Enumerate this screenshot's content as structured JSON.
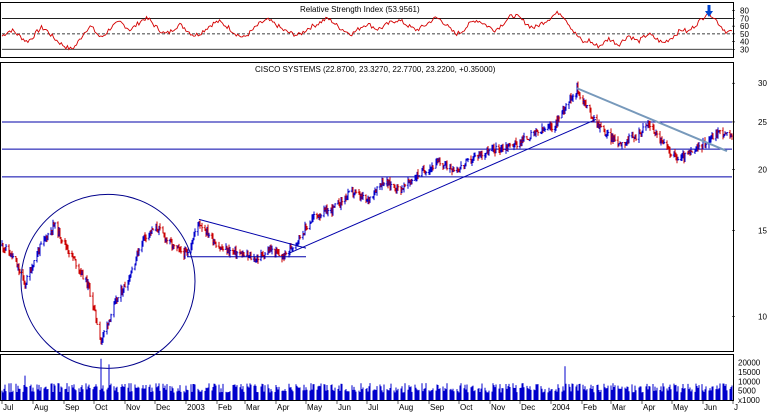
{
  "chart_data": [
    {
      "type": "line",
      "panel": "rsi",
      "title": "Relative Strength Index (53.9561)",
      "ylim": [
        20,
        90
      ],
      "yticks": [
        "80",
        "70",
        "60",
        "50",
        "40",
        "30"
      ],
      "ytick_values": [
        80,
        70,
        60,
        50,
        40,
        30
      ],
      "reference_lines": {
        "upper": 70,
        "mid": 50,
        "lower": 30
      },
      "last_value": 53.9561,
      "line_color": "#d40000",
      "series": [
        {
          "values": [
            47,
            52,
            55,
            50,
            45,
            40,
            44,
            52,
            58,
            55,
            48,
            42,
            37,
            33,
            30,
            35,
            45,
            55,
            60,
            52,
            45,
            50,
            58,
            62,
            65,
            60,
            55,
            60,
            66,
            70,
            68,
            60,
            55,
            50,
            52,
            58,
            62,
            58,
            52,
            48,
            50,
            55,
            60,
            64,
            66,
            62,
            58,
            52,
            48,
            45,
            50,
            56,
            62,
            66,
            68,
            64,
            60,
            55,
            52,
            50,
            48,
            52,
            57,
            60,
            63,
            67,
            70,
            66,
            60,
            56,
            52,
            50,
            55,
            60,
            63,
            60,
            56,
            58,
            62,
            65,
            68,
            66,
            62,
            58,
            55,
            58,
            62,
            67,
            71,
            68,
            62,
            55,
            50,
            52,
            58,
            64,
            68,
            66,
            62,
            58,
            55,
            60,
            66,
            72,
            74,
            70,
            65,
            60,
            58,
            62,
            66,
            70,
            75,
            78,
            72,
            62,
            52,
            45,
            38,
            42,
            36,
            34,
            38,
            44,
            40,
            36,
            42,
            48,
            44,
            40,
            45,
            50,
            46,
            42,
            38,
            42,
            46,
            52,
            56,
            52,
            58,
            64,
            70,
            78,
            74,
            66,
            58,
            52,
            53.9561
          ]
        }
      ]
    },
    {
      "type": "candlestick",
      "panel": "price",
      "title": "CISCO SYSTEMS (22.8700, 23.3270, 22.7700, 23.2200, +0.35000)",
      "scale": "log",
      "ylim": [
        8.5,
        33
      ],
      "yticks": [
        "30",
        "25",
        "20",
        "15",
        "10"
      ],
      "ytick_values": [
        30,
        25,
        20,
        15,
        10
      ],
      "horizontal_levels": [
        25,
        22,
        19.3
      ],
      "up_color": "#0000cc",
      "down_color": "#cc0000",
      "x_start": "2002-07-01",
      "x_end": "2004-06-30",
      "close_anchors": [
        [
          "2002-07-01",
          14.0
        ],
        [
          "2002-07-12",
          13.2
        ],
        [
          "2002-07-24",
          11.6
        ],
        [
          "2002-08-06",
          13.6
        ],
        [
          "2002-08-22",
          15.4
        ],
        [
          "2002-09-06",
          13.6
        ],
        [
          "2002-09-25",
          11.6
        ],
        [
          "2002-10-08",
          8.9
        ],
        [
          "2002-10-22",
          10.6
        ],
        [
          "2002-11-05",
          12.0
        ],
        [
          "2002-11-20",
          14.6
        ],
        [
          "2002-12-03",
          15.2
        ],
        [
          "2002-12-20",
          13.8
        ],
        [
          "2003-01-02",
          13.4
        ],
        [
          "2003-01-14",
          15.6
        ],
        [
          "2003-02-04",
          13.8
        ],
        [
          "2003-02-25",
          13.4
        ],
        [
          "2003-03-12",
          13.1
        ],
        [
          "2003-03-26",
          13.7
        ],
        [
          "2003-04-08",
          13.2
        ],
        [
          "2003-04-22",
          14.3
        ],
        [
          "2003-05-09",
          16.0
        ],
        [
          "2003-05-28",
          16.6
        ],
        [
          "2003-06-16",
          18.0
        ],
        [
          "2003-07-01",
          17.2
        ],
        [
          "2003-07-16",
          18.9
        ],
        [
          "2003-08-04",
          18.2
        ],
        [
          "2003-08-22",
          19.6
        ],
        [
          "2003-09-10",
          20.6
        ],
        [
          "2003-09-30",
          20.0
        ],
        [
          "2003-10-20",
          21.4
        ],
        [
          "2003-11-07",
          22.0
        ],
        [
          "2003-11-28",
          22.6
        ],
        [
          "2003-12-15",
          23.6
        ],
        [
          "2004-01-05",
          24.6
        ],
        [
          "2004-01-15",
          27.0
        ],
        [
          "2004-01-27",
          29.2
        ],
        [
          "2004-02-09",
          26.0
        ],
        [
          "2004-02-25",
          23.6
        ],
        [
          "2004-03-10",
          22.6
        ],
        [
          "2004-03-25",
          23.3
        ],
        [
          "2004-04-08",
          24.8
        ],
        [
          "2004-04-23",
          22.4
        ],
        [
          "2004-05-07",
          21.0
        ],
        [
          "2004-05-21",
          21.6
        ],
        [
          "2004-06-04",
          22.8
        ],
        [
          "2004-06-17",
          23.9
        ],
        [
          "2004-06-30",
          23.22
        ]
      ],
      "trendlines": [
        {
          "color": "#0000aa",
          "points": [
            [
              "2003-01-14",
              15.8
            ],
            [
              "2003-05-01",
              13.8
            ]
          ]
        },
        {
          "color": "#0000aa",
          "points": [
            [
              "2003-01-02",
              13.25
            ],
            [
              "2003-05-01",
              13.25
            ]
          ]
        },
        {
          "color": "#0000aa",
          "points": [
            [
              "2003-04-15",
              13.5
            ],
            [
              "2004-02-15",
              25.3
            ]
          ]
        },
        {
          "color": "#7799bb",
          "points": [
            [
              "2004-01-27",
              29.3
            ],
            [
              "2004-06-25",
              21.8
            ]
          ]
        }
      ],
      "annotation_circle": {
        "start": "2002-07-20",
        "end": "2003-01-10"
      },
      "down_arrow_color": "#0044cc",
      "down_arrow_date": "2004-06-07"
    },
    {
      "type": "bar",
      "panel": "volume",
      "yticks": [
        "20000",
        "15000",
        "10000",
        "5000",
        "x1000"
      ],
      "ytick_values": [
        20000,
        15000,
        10000,
        5000
      ],
      "ylim": [
        0,
        24000
      ],
      "bar_color": "#0000cc",
      "spike_dates": [
        [
          "2002-10-08",
          22000
        ],
        [
          "2002-10-16",
          19000
        ],
        [
          "2004-01-15",
          18000
        ],
        [
          "2002-07-24",
          13000
        ]
      ],
      "typical_volume": [
        4000,
        9000
      ]
    }
  ],
  "x_axis": {
    "labels": [
      "Jul",
      "Aug",
      "Sep",
      "Oct",
      "Nov",
      "Dec",
      "2003",
      "Feb",
      "Mar",
      "Apr",
      "May",
      "Jun",
      "Jul",
      "Aug",
      "Sep",
      "Oct",
      "Nov",
      "Dec",
      "2004",
      "Feb",
      "Mar",
      "Apr",
      "May",
      "Jun",
      "J"
    ],
    "dates": [
      "2002-07-01",
      "2002-08-01",
      "2002-09-01",
      "2002-10-01",
      "2002-11-01",
      "2002-12-01",
      "2003-01-01",
      "2003-02-01",
      "2003-03-01",
      "2003-04-01",
      "2003-05-01",
      "2003-06-01",
      "2003-07-01",
      "2003-08-01",
      "2003-09-01",
      "2003-10-01",
      "2003-11-01",
      "2003-12-01",
      "2004-01-01",
      "2004-02-01",
      "2004-03-01",
      "2004-04-01",
      "2004-05-01",
      "2004-06-01",
      "2004-07-01"
    ]
  }
}
